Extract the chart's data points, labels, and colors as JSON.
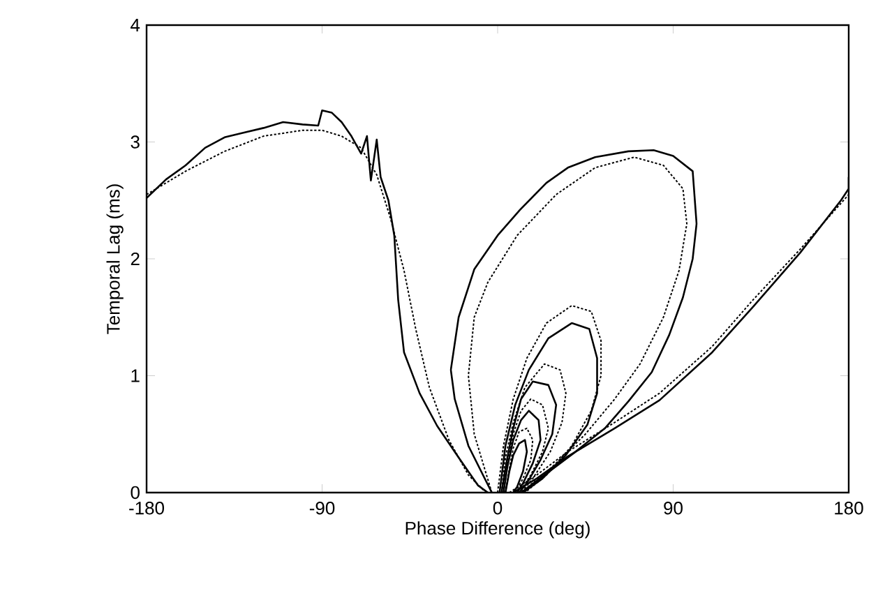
{
  "chart_data": {
    "type": "line",
    "xlabel": "Phase Difference (deg)",
    "ylabel": "Temporal Lag (ms)",
    "xlim": [
      -180,
      180
    ],
    "ylim": [
      0,
      4
    ],
    "xticks": [
      -180,
      -90,
      0,
      90,
      180
    ],
    "yticks": [
      0,
      1,
      2,
      3,
      4
    ],
    "series": [
      {
        "color": "#000000",
        "line_style": "solid",
        "x": [
          -180,
          -170,
          -160,
          -150,
          -140,
          -130,
          -120,
          -110,
          -100,
          -92,
          -90,
          -85,
          -80,
          -75,
          -70,
          -67,
          -65,
          -62,
          -60,
          -56,
          -53,
          -51,
          -48,
          -40,
          -31,
          -20,
          -10,
          -5
        ],
        "values": [
          2.52,
          2.68,
          2.8,
          2.95,
          3.04,
          3.08,
          3.12,
          3.17,
          3.15,
          3.14,
          3.27,
          3.25,
          3.17,
          3.05,
          2.9,
          3.05,
          2.67,
          3.02,
          2.7,
          2.5,
          2.2,
          1.65,
          1.2,
          0.85,
          0.57,
          0.3,
          0.06,
          0
        ]
      },
      {
        "color": "#000000",
        "line_style": "dotted",
        "x": [
          -180,
          -160,
          -140,
          -120,
          -100,
          -90,
          -80,
          -70,
          -62,
          -55,
          -48,
          -42,
          -35,
          -25,
          -15,
          -6
        ],
        "values": [
          2.55,
          2.75,
          2.92,
          3.05,
          3.1,
          3.1,
          3.05,
          2.95,
          2.72,
          2.35,
          1.9,
          1.4,
          0.9,
          0.45,
          0.15,
          0
        ]
      },
      {
        "color": "#000000",
        "line_style": "solid",
        "x": [
          -3,
          -15,
          -22,
          -24,
          -20,
          -12,
          0,
          11.5,
          25,
          36,
          50,
          67,
          80,
          90,
          100,
          102,
          100,
          95,
          88,
          79,
          67,
          55,
          40,
          24,
          12
        ],
        "values": [
          0,
          0.4,
          0.8,
          1.05,
          1.5,
          1.91,
          2.2,
          2.42,
          2.65,
          2.78,
          2.87,
          2.92,
          2.93,
          2.88,
          2.75,
          2.3,
          2.0,
          1.67,
          1.35,
          1.03,
          0.78,
          0.55,
          0.35,
          0.15,
          0
        ]
      },
      {
        "color": "#000000",
        "line_style": "dotted",
        "x": [
          -3,
          -12,
          -15,
          -12,
          -5,
          10,
          30,
          50,
          70,
          85,
          95,
          97,
          93,
          85,
          73,
          60,
          45,
          28,
          12
        ],
        "values": [
          0,
          0.5,
          1.0,
          1.5,
          1.8,
          2.2,
          2.55,
          2.78,
          2.87,
          2.8,
          2.6,
          2.3,
          1.9,
          1.5,
          1.1,
          0.8,
          0.5,
          0.22,
          0
        ]
      },
      {
        "color": "#000000",
        "line_style": "solid",
        "x": [
          8,
          20,
          36,
          60,
          83,
          110,
          131,
          155,
          176,
          180,
          180
        ],
        "values": [
          0,
          0.12,
          0.31,
          0.55,
          0.79,
          1.2,
          1.59,
          2.05,
          2.5,
          2.6,
          2.7
        ]
      },
      {
        "color": "#000000",
        "line_style": "dotted",
        "x": [
          6,
          20,
          36,
          60,
          83,
          110,
          131,
          155,
          180
        ],
        "values": [
          0,
          0.15,
          0.35,
          0.6,
          0.85,
          1.25,
          1.65,
          2.08,
          2.55
        ]
      },
      {
        "color": "#000000",
        "line_style": "dotted",
        "x": [
          0,
          3,
          8,
          15,
          25,
          38,
          48,
          53,
          53,
          48,
          38,
          25,
          14
        ],
        "values": [
          0,
          0.4,
          0.8,
          1.15,
          1.45,
          1.6,
          1.55,
          1.3,
          1.0,
          0.7,
          0.4,
          0.15,
          0
        ]
      },
      {
        "color": "#000000",
        "line_style": "solid",
        "x": [
          1,
          4,
          9,
          16,
          26,
          38,
          47,
          51,
          51,
          46,
          35,
          23,
          13
        ],
        "values": [
          0,
          0.4,
          0.75,
          1.05,
          1.32,
          1.45,
          1.4,
          1.15,
          0.85,
          0.58,
          0.32,
          0.12,
          0
        ]
      },
      {
        "color": "#000000",
        "line_style": "dotted",
        "x": [
          2,
          4,
          8,
          14,
          24,
          32,
          35,
          33,
          27,
          18,
          12
        ],
        "values": [
          0,
          0.3,
          0.6,
          0.9,
          1.1,
          1.05,
          0.85,
          0.6,
          0.35,
          0.12,
          0
        ]
      },
      {
        "color": "#000000",
        "line_style": "solid",
        "x": [
          2,
          5,
          8,
          12,
          18,
          26,
          30,
          28,
          22,
          15,
          11
        ],
        "values": [
          0,
          0.3,
          0.55,
          0.8,
          0.95,
          0.92,
          0.75,
          0.5,
          0.28,
          0.08,
          0
        ]
      },
      {
        "color": "#000000",
        "line_style": "dotted",
        "x": [
          3,
          5,
          8,
          12,
          17,
          23,
          26,
          23,
          17,
          11
        ],
        "values": [
          0,
          0.25,
          0.5,
          0.7,
          0.8,
          0.75,
          0.55,
          0.35,
          0.15,
          0
        ]
      },
      {
        "color": "#000000",
        "line_style": "solid",
        "x": [
          3,
          5,
          8,
          12,
          16,
          21,
          22,
          18,
          13,
          10
        ],
        "values": [
          0,
          0.22,
          0.45,
          0.62,
          0.7,
          0.62,
          0.45,
          0.25,
          0.08,
          0
        ]
      },
      {
        "color": "#000000",
        "line_style": "dotted",
        "x": [
          4,
          6,
          8,
          11,
          15,
          18,
          17,
          13,
          9
        ],
        "values": [
          0,
          0.2,
          0.38,
          0.52,
          0.55,
          0.45,
          0.28,
          0.12,
          0
        ]
      },
      {
        "color": "#000000",
        "line_style": "solid",
        "x": [
          4,
          6,
          8,
          11,
          14,
          15,
          13,
          10,
          8
        ],
        "values": [
          0,
          0.18,
          0.32,
          0.42,
          0.45,
          0.35,
          0.18,
          0.05,
          0
        ]
      }
    ]
  }
}
